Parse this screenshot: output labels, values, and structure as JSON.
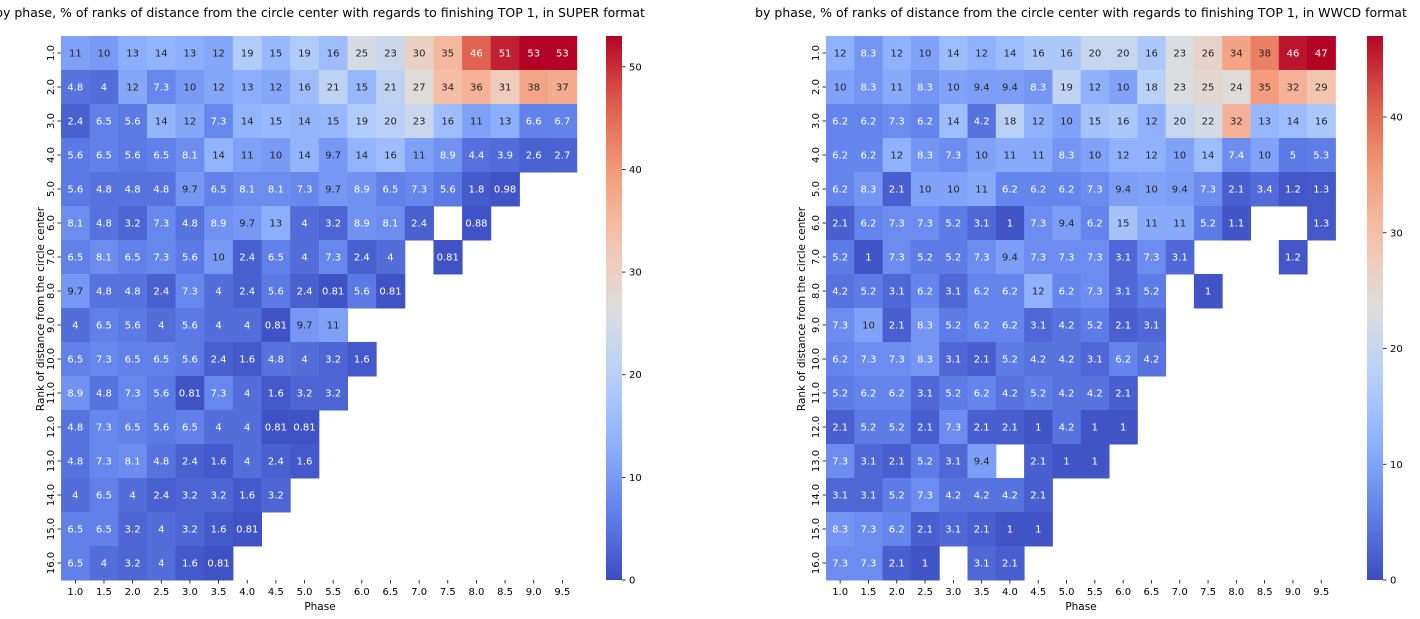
{
  "colormap": {
    "name": "coolwarm",
    "stops": [
      "#3b4cc0",
      "#6282ea",
      "#8db0fe",
      "#b8d0f9",
      "#dddddd",
      "#f5c4ad",
      "#f49a7b",
      "#de604d",
      "#b40426"
    ]
  },
  "chart_data": [
    {
      "type": "heatmap",
      "title": "by phase, % of ranks of distance from the circle center with regards to finishing TOP 1, in SUPER format",
      "xlabel": "Phase",
      "ylabel": "Rank of distance from the circle center",
      "x": [
        "1.0",
        "1.5",
        "2.0",
        "2.5",
        "3.0",
        "3.5",
        "4.0",
        "4.5",
        "5.0",
        "5.5",
        "6.0",
        "6.5",
        "7.0",
        "7.5",
        "8.0",
        "8.5",
        "9.0",
        "9.5"
      ],
      "y": [
        "1.0",
        "2.0",
        "3.0",
        "4.0",
        "5.0",
        "6.0",
        "7.0",
        "8.0",
        "9.0",
        "10.0",
        "11.0",
        "12.0",
        "13.0",
        "14.0",
        "15.0",
        "16.0"
      ],
      "values": [
        [
          11,
          10,
          13,
          14,
          13,
          12,
          19,
          15,
          19,
          16,
          25,
          23,
          30,
          35,
          46,
          51,
          53,
          53
        ],
        [
          4.8,
          4,
          12,
          7.3,
          10,
          12,
          13,
          12,
          16,
          21,
          15,
          21,
          27,
          34,
          36,
          31,
          38,
          37
        ],
        [
          2.4,
          6.5,
          5.6,
          14,
          12,
          7.3,
          14,
          15,
          14,
          15,
          19,
          20,
          23,
          16,
          11,
          13,
          6.6,
          6.7
        ],
        [
          5.6,
          6.5,
          5.6,
          6.5,
          8.1,
          14,
          11,
          10,
          14,
          9.7,
          14,
          16,
          11,
          8.9,
          4.4,
          3.9,
          2.6,
          2.7
        ],
        [
          5.6,
          4.8,
          4.8,
          4.8,
          9.7,
          6.5,
          8.1,
          8.1,
          7.3,
          9.7,
          8.9,
          6.5,
          7.3,
          5.6,
          1.8,
          0.98,
          null,
          null
        ],
        [
          8.1,
          4.8,
          3.2,
          7.3,
          4.8,
          8.9,
          9.7,
          13,
          4,
          3.2,
          8.9,
          8.1,
          2.4,
          null,
          0.88,
          null,
          null,
          null
        ],
        [
          6.5,
          8.1,
          6.5,
          7.3,
          5.6,
          10,
          2.4,
          6.5,
          4,
          7.3,
          2.4,
          4,
          null,
          0.81,
          null,
          null,
          null,
          null
        ],
        [
          9.7,
          4.8,
          4.8,
          2.4,
          7.3,
          4,
          2.4,
          5.6,
          2.4,
          0.81,
          5.6,
          0.81,
          null,
          null,
          null,
          null,
          null,
          null
        ],
        [
          4,
          6.5,
          5.6,
          4,
          5.6,
          4,
          4,
          0.81,
          9.7,
          11,
          null,
          null,
          null,
          null,
          null,
          null,
          null,
          null
        ],
        [
          6.5,
          7.3,
          6.5,
          6.5,
          5.6,
          2.4,
          1.6,
          4.8,
          4,
          3.2,
          1.6,
          null,
          null,
          null,
          null,
          null,
          null,
          null
        ],
        [
          8.9,
          4.8,
          7.3,
          5.6,
          0.81,
          7.3,
          4,
          1.6,
          3.2,
          3.2,
          null,
          null,
          null,
          null,
          null,
          null,
          null,
          null
        ],
        [
          4.8,
          7.3,
          6.5,
          5.6,
          6.5,
          4,
          4,
          0.81,
          0.81,
          null,
          null,
          null,
          null,
          null,
          null,
          null,
          null,
          null
        ],
        [
          4.8,
          7.3,
          8.1,
          4.8,
          2.4,
          1.6,
          4,
          2.4,
          1.6,
          null,
          null,
          null,
          null,
          null,
          null,
          null,
          null,
          null
        ],
        [
          4,
          6.5,
          4,
          2.4,
          3.2,
          3.2,
          1.6,
          3.2,
          null,
          null,
          null,
          null,
          null,
          null,
          null,
          null,
          null,
          null
        ],
        [
          6.5,
          6.5,
          3.2,
          4,
          3.2,
          1.6,
          0.81,
          null,
          null,
          null,
          null,
          null,
          null,
          null,
          null,
          null,
          null,
          null
        ],
        [
          6.5,
          4,
          3.2,
          4,
          1.6,
          0.81,
          null,
          null,
          null,
          null,
          null,
          null,
          null,
          null,
          null,
          null,
          null,
          null
        ]
      ],
      "vmin": 0,
      "vmax": 53,
      "colorbar_ticks": [
        0,
        10,
        20,
        30,
        40,
        50
      ]
    },
    {
      "type": "heatmap",
      "title": "by phase, % of ranks of distance from the circle center with regards to finishing TOP 1, in WWCD format",
      "xlabel": "Phase",
      "ylabel": "Rank of distance from the circle center",
      "x": [
        "1.0",
        "1.5",
        "2.0",
        "2.5",
        "3.0",
        "3.5",
        "4.0",
        "4.5",
        "5.0",
        "5.5",
        "6.0",
        "6.5",
        "7.0",
        "7.5",
        "8.0",
        "8.5",
        "9.0",
        "9.5"
      ],
      "y": [
        "1.0",
        "2.0",
        "3.0",
        "4.0",
        "5.0",
        "6.0",
        "7.0",
        "8.0",
        "9.0",
        "10.0",
        "11.0",
        "12.0",
        "13.0",
        "14.0",
        "15.0",
        "16.0"
      ],
      "values": [
        [
          12,
          8.3,
          12,
          10,
          14,
          12,
          14,
          16,
          16,
          20,
          20,
          16,
          23,
          26,
          34,
          38,
          46,
          47
        ],
        [
          10,
          8.3,
          11,
          8.3,
          10,
          9.4,
          9.4,
          8.3,
          19,
          12,
          10,
          18,
          23,
          25,
          24,
          35,
          32,
          29
        ],
        [
          6.2,
          6.2,
          7.3,
          6.2,
          14,
          4.2,
          18,
          12,
          10,
          15,
          16,
          12,
          20,
          22,
          32,
          13,
          14,
          16
        ],
        [
          6.2,
          6.2,
          12,
          8.3,
          7.3,
          10,
          11,
          11,
          8.3,
          10,
          12,
          12,
          10,
          14,
          7.4,
          10,
          5,
          5.3
        ],
        [
          6.2,
          8.3,
          2.1,
          10,
          10,
          11,
          6.2,
          6.2,
          6.2,
          7.3,
          9.4,
          10,
          9.4,
          7.3,
          2.1,
          3.4,
          1.2,
          1.3
        ],
        [
          2.1,
          6.2,
          7.3,
          7.3,
          5.2,
          3.1,
          1,
          7.3,
          9.4,
          6.2,
          15,
          11,
          11,
          5.2,
          1.1,
          null,
          null,
          1.3
        ],
        [
          5.2,
          1,
          7.3,
          5.2,
          5.2,
          7.3,
          9.4,
          7.3,
          7.3,
          7.3,
          3.1,
          7.3,
          3.1,
          null,
          null,
          null,
          1.2,
          null
        ],
        [
          4.2,
          5.2,
          3.1,
          6.2,
          3.1,
          6.2,
          6.2,
          12,
          6.2,
          7.3,
          3.1,
          5.2,
          null,
          1,
          null,
          null,
          null,
          null
        ],
        [
          7.3,
          10,
          2.1,
          8.3,
          5.2,
          6.2,
          6.2,
          3.1,
          4.2,
          5.2,
          2.1,
          3.1,
          null,
          null,
          null,
          null,
          null,
          null
        ],
        [
          6.2,
          7.3,
          7.3,
          8.3,
          3.1,
          2.1,
          5.2,
          4.2,
          4.2,
          3.1,
          6.2,
          4.2,
          null,
          null,
          null,
          null,
          null,
          null
        ],
        [
          5.2,
          6.2,
          6.2,
          3.1,
          5.2,
          6.2,
          4.2,
          5.2,
          4.2,
          4.2,
          2.1,
          null,
          null,
          null,
          null,
          null,
          null,
          null
        ],
        [
          2.1,
          5.2,
          5.2,
          2.1,
          7.3,
          2.1,
          2.1,
          1,
          4.2,
          1,
          1,
          null,
          null,
          null,
          null,
          null,
          null,
          null
        ],
        [
          7.3,
          3.1,
          2.1,
          5.2,
          3.1,
          9.4,
          null,
          2.1,
          1,
          1,
          null,
          null,
          null,
          null,
          null,
          null,
          null,
          null
        ],
        [
          3.1,
          3.1,
          5.2,
          7.3,
          4.2,
          4.2,
          4.2,
          2.1,
          null,
          null,
          null,
          null,
          null,
          null,
          null,
          null,
          null,
          null
        ],
        [
          8.3,
          7.3,
          6.2,
          2.1,
          3.1,
          2.1,
          1,
          1,
          null,
          null,
          null,
          null,
          null,
          null,
          null,
          null,
          null,
          null
        ],
        [
          7.3,
          7.3,
          2.1,
          1,
          null,
          3.1,
          2.1,
          null,
          null,
          null,
          null,
          null,
          null,
          null,
          null,
          null,
          null,
          null
        ]
      ],
      "vmin": 0,
      "vmax": 47,
      "colorbar_ticks": [
        0,
        10,
        20,
        30,
        40
      ]
    }
  ]
}
